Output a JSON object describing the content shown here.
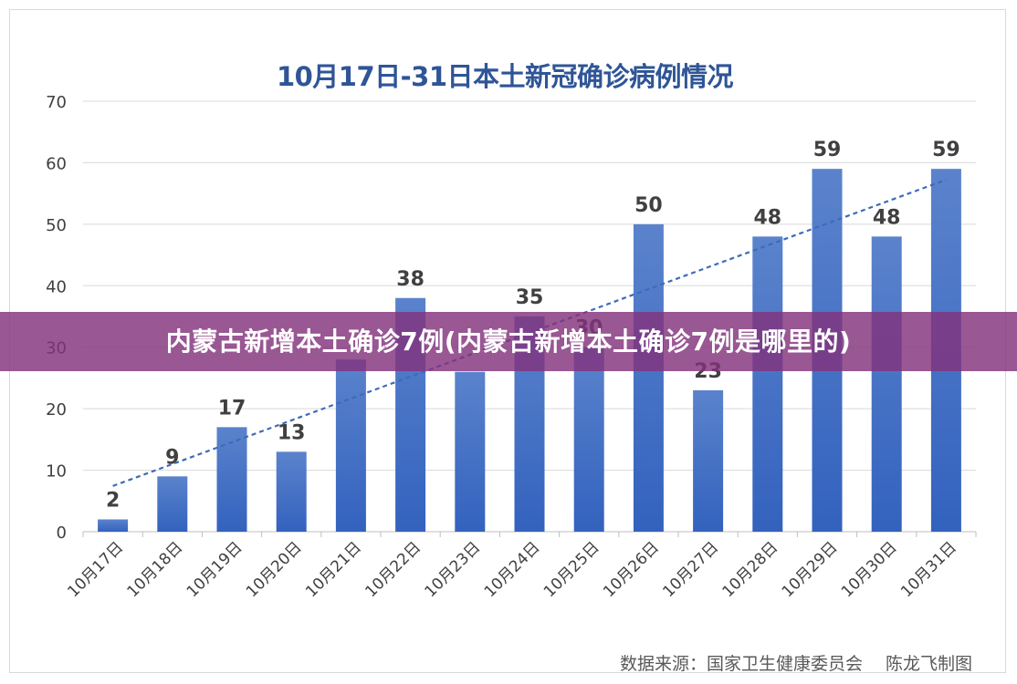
{
  "chart_data": {
    "type": "bar",
    "title": "10月17日-31日本土新冠确诊病例情况",
    "categories": [
      "10月17日",
      "10月18日",
      "10月19日",
      "10月20日",
      "10月21日",
      "10月22日",
      "10月23日",
      "10月24日",
      "10月25日",
      "10月26日",
      "10月27日",
      "10月28日",
      "10月29日",
      "10月30日",
      "10月31日"
    ],
    "values": [
      2,
      9,
      17,
      13,
      28,
      38,
      26,
      35,
      30,
      50,
      23,
      48,
      59,
      48,
      59
    ],
    "data_labels": [
      "2",
      "9",
      "17",
      "13",
      "",
      "38",
      "",
      "35",
      "30",
      "50",
      "23",
      "48",
      "59",
      "48",
      "59"
    ],
    "ylim": [
      0,
      70
    ],
    "yticks": [
      0,
      10,
      20,
      30,
      40,
      50,
      60,
      70
    ],
    "trendline": {
      "type": "linear",
      "style": "dashed"
    },
    "grid": true,
    "legend": "none",
    "xlabel": "",
    "ylabel": "",
    "colors": {
      "bar_top": "#5b83cc",
      "bar_bottom": "#3362be",
      "trend": "#3d6bb8",
      "title": "#2f5597",
      "axis_text": "#404040",
      "label_text": "#404040",
      "grid": "#d9d9d9"
    }
  },
  "overlay_caption": "内蒙古新增本土确诊7例(内蒙古新增本土确诊7例是哪里的)",
  "source_note": "数据来源：国家卫生健康委员会　 陈龙飞制图"
}
